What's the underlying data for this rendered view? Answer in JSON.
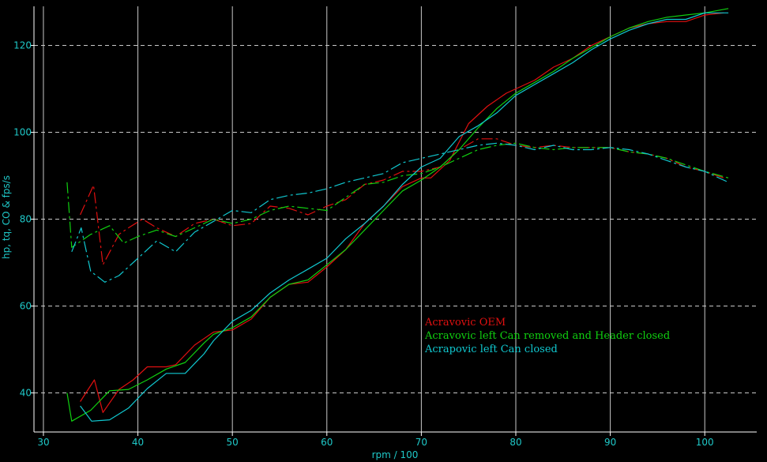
{
  "chart_data": {
    "type": "line",
    "xlabel": "rpm / 100",
    "ylabel": "hp, tq, CO & fps/s",
    "xlim": [
      29,
      105.5
    ],
    "ylim": [
      31,
      129
    ],
    "x_ticks": [
      30,
      40,
      50,
      60,
      70,
      80,
      90,
      100
    ],
    "y_ticks": [
      40,
      60,
      80,
      100,
      120
    ],
    "grid": true,
    "legend_placement": "center-right",
    "colors": {
      "background": "#000000",
      "grid": "#c8c8c8",
      "axis": "#ffffff",
      "ticks": "#1fc8c8"
    },
    "series": [
      {
        "name": "Acravovic OEM",
        "color": "#e01010",
        "curves": [
          {
            "style": "solid",
            "points": [
              [
                33.9,
                38
              ],
              [
                35.4,
                43
              ],
              [
                36.3,
                35.5
              ],
              [
                38,
                40.8
              ],
              [
                39.5,
                43
              ],
              [
                41,
                46
              ],
              [
                43,
                46
              ],
              [
                44,
                46.5
              ],
              [
                46,
                51
              ],
              [
                48,
                54
              ],
              [
                50,
                54.5
              ],
              [
                52,
                57
              ],
              [
                54,
                62
              ],
              [
                56,
                65
              ],
              [
                58,
                65.5
              ],
              [
                60,
                69
              ],
              [
                62,
                73
              ],
              [
                64,
                79
              ],
              [
                66,
                83
              ],
              [
                68,
                87.5
              ],
              [
                70,
                89.5
              ],
              [
                71,
                89.5
              ],
              [
                73,
                93.5
              ],
              [
                75,
                102
              ],
              [
                77,
                106
              ],
              [
                79,
                109
              ],
              [
                80,
                110
              ],
              [
                82,
                112
              ],
              [
                84,
                115
              ],
              [
                86,
                117
              ],
              [
                88,
                120
              ],
              [
                90,
                122
              ],
              [
                92,
                124
              ],
              [
                94,
                125
              ],
              [
                96,
                125.5
              ],
              [
                98,
                125.5
              ],
              [
                100,
                127
              ],
              [
                102,
                127.5
              ]
            ]
          },
          {
            "style": "dashed",
            "points": [
              [
                33.9,
                81
              ],
              [
                35.3,
                87.8
              ],
              [
                36.3,
                69.5
              ],
              [
                38,
                76.5
              ],
              [
                39,
                78
              ],
              [
                40.5,
                80
              ],
              [
                42,
                78
              ],
              [
                44,
                76
              ],
              [
                46,
                79
              ],
              [
                48,
                80
              ],
              [
                50,
                78.5
              ],
              [
                52,
                79
              ],
              [
                54,
                83
              ],
              [
                56,
                82.5
              ],
              [
                58,
                81
              ],
              [
                60,
                83
              ],
              [
                62,
                84.5
              ],
              [
                64,
                88
              ],
              [
                66,
                89
              ],
              [
                68,
                91
              ],
              [
                70,
                91
              ],
              [
                72,
                92
              ],
              [
                74,
                96
              ],
              [
                76,
                98.5
              ],
              [
                78,
                98.5
              ],
              [
                80,
                97
              ],
              [
                82,
                96.5
              ],
              [
                84,
                97
              ],
              [
                86,
                96.5
              ],
              [
                88,
                96.5
              ],
              [
                90,
                96.5
              ],
              [
                92,
                95.5
              ],
              [
                94,
                95
              ],
              [
                96,
                94
              ],
              [
                98,
                92
              ],
              [
                100,
                91
              ],
              [
                102,
                89.5
              ]
            ]
          }
        ]
      },
      {
        "name": "Acravovic left Can removed and Header closed",
        "color": "#10d010",
        "curves": [
          {
            "style": "solid",
            "points": [
              [
                32.5,
                40
              ],
              [
                33,
                33.5
              ],
              [
                35,
                36
              ],
              [
                37,
                40.5
              ],
              [
                39,
                40.8
              ],
              [
                41,
                43
              ],
              [
                43,
                45.5
              ],
              [
                45,
                47
              ],
              [
                47,
                51.5
              ],
              [
                48,
                53.5
              ],
              [
                50,
                55
              ],
              [
                52,
                57.5
              ],
              [
                54,
                62
              ],
              [
                56,
                65
              ],
              [
                58,
                66
              ],
              [
                60,
                69.5
              ],
              [
                62,
                73
              ],
              [
                64,
                77.5
              ],
              [
                66,
                82
              ],
              [
                68,
                86.5
              ],
              [
                70,
                89
              ],
              [
                72,
                92
              ],
              [
                74,
                96
              ],
              [
                76,
                101
              ],
              [
                78,
                105.5
              ],
              [
                80,
                109
              ],
              [
                82,
                111.5
              ],
              [
                84,
                114
              ],
              [
                86,
                117
              ],
              [
                88,
                119.5
              ],
              [
                90,
                122
              ],
              [
                92,
                124
              ],
              [
                94,
                125.5
              ],
              [
                96,
                126.5
              ],
              [
                98,
                127
              ],
              [
                100,
                127.5
              ],
              [
                102.5,
                128.5
              ]
            ]
          },
          {
            "style": "dashed",
            "points": [
              [
                32.5,
                88.5
              ],
              [
                33,
                73.5
              ],
              [
                35,
                76.5
              ],
              [
                37,
                78.5
              ],
              [
                38.5,
                74.5
              ],
              [
                40,
                76
              ],
              [
                42,
                77.5
              ],
              [
                44,
                76
              ],
              [
                46,
                78
              ],
              [
                48,
                80
              ],
              [
                50,
                79
              ],
              [
                52,
                80
              ],
              [
                54,
                82
              ],
              [
                56,
                83
              ],
              [
                58,
                82.5
              ],
              [
                60,
                82
              ],
              [
                62,
                85
              ],
              [
                64,
                88
              ],
              [
                66,
                88.5
              ],
              [
                68,
                90
              ],
              [
                70,
                90.5
              ],
              [
                72,
                92
              ],
              [
                74,
                94
              ],
              [
                76,
                96
              ],
              [
                78,
                97
              ],
              [
                80,
                97.5
              ],
              [
                82,
                96.5
              ],
              [
                84,
                96
              ],
              [
                86,
                96.5
              ],
              [
                88,
                96.5
              ],
              [
                90,
                96.5
              ],
              [
                92,
                95.5
              ],
              [
                94,
                95
              ],
              [
                96,
                94
              ],
              [
                98,
                92.5
              ],
              [
                100,
                91
              ],
              [
                102.5,
                89.5
              ]
            ]
          }
        ]
      },
      {
        "name": "Acrapovic left Can closed",
        "color": "#10c8d0",
        "curves": [
          {
            "style": "solid",
            "points": [
              [
                33.9,
                37
              ],
              [
                35.1,
                33.5
              ],
              [
                37,
                33.8
              ],
              [
                39,
                36.5
              ],
              [
                41,
                41
              ],
              [
                43,
                44.5
              ],
              [
                45,
                44.5
              ],
              [
                47,
                49
              ],
              [
                48,
                52
              ],
              [
                50,
                56.5
              ],
              [
                52,
                59
              ],
              [
                54,
                63
              ],
              [
                56,
                66
              ],
              [
                58,
                68.5
              ],
              [
                60,
                71
              ],
              [
                62,
                75.5
              ],
              [
                64,
                79
              ],
              [
                66,
                83
              ],
              [
                68,
                88
              ],
              [
                70,
                92
              ],
              [
                72,
                94
              ],
              [
                74,
                99
              ],
              [
                76,
                101.5
              ],
              [
                78,
                104.5
              ],
              [
                80,
                108.5
              ],
              [
                82,
                111
              ],
              [
                84,
                113.5
              ],
              [
                86,
                116
              ],
              [
                88,
                119
              ],
              [
                90,
                121.5
              ],
              [
                92,
                123.5
              ],
              [
                94,
                125
              ],
              [
                96,
                126
              ],
              [
                98,
                126
              ],
              [
                100,
                127.5
              ],
              [
                102.5,
                127.5
              ]
            ]
          },
          {
            "style": "dashed",
            "points": [
              [
                33,
                72.5
              ],
              [
                34,
                78
              ],
              [
                35,
                68
              ],
              [
                36.5,
                65.5
              ],
              [
                38,
                67
              ],
              [
                40,
                71
              ],
              [
                42,
                75
              ],
              [
                44,
                72.5
              ],
              [
                46,
                77
              ],
              [
                48,
                79.5
              ],
              [
                50,
                82
              ],
              [
                52,
                81.5
              ],
              [
                54,
                84.5
              ],
              [
                56,
                85.5
              ],
              [
                58,
                86
              ],
              [
                60,
                87
              ],
              [
                62,
                88.5
              ],
              [
                64,
                89.5
              ],
              [
                66,
                90.5
              ],
              [
                68,
                93
              ],
              [
                70,
                94
              ],
              [
                72,
                95
              ],
              [
                74,
                96
              ],
              [
                76,
                97
              ],
              [
                78,
                97.5
              ],
              [
                80,
                97
              ],
              [
                82,
                96
              ],
              [
                84,
                97
              ],
              [
                86,
                96
              ],
              [
                88,
                96
              ],
              [
                90,
                96.5
              ],
              [
                92,
                96
              ],
              [
                94,
                95
              ],
              [
                96,
                93.5
              ],
              [
                98,
                92
              ],
              [
                100,
                91
              ],
              [
                102.5,
                88.5
              ]
            ]
          }
        ]
      }
    ]
  }
}
